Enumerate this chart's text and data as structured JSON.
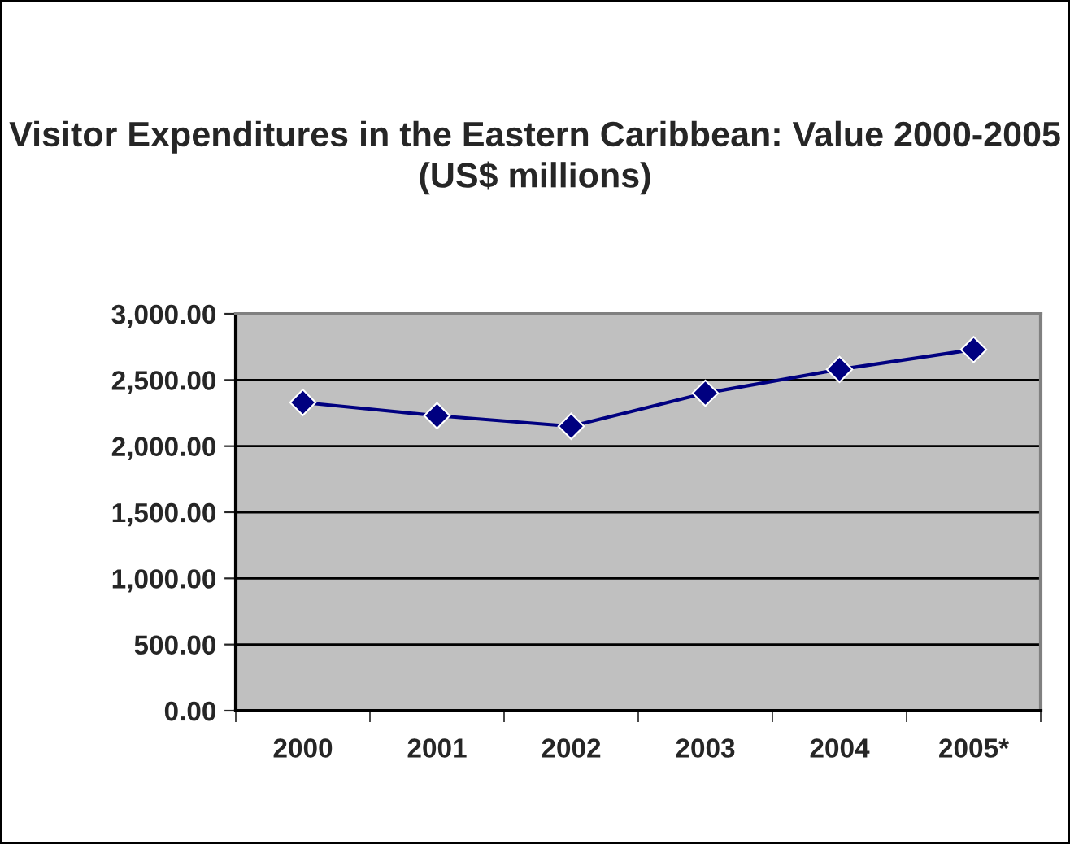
{
  "chart_data": {
    "type": "line",
    "title": "Visitor Expenditures in the Eastern Caribbean: Value 2000-2005\n(US$ millions)",
    "categories": [
      "2000",
      "2001",
      "2002",
      "2003",
      "2004",
      "2005*"
    ],
    "series": [
      {
        "color": "#000080",
        "values": [
          2330,
          2230,
          2150,
          2400,
          2580,
          2730
        ]
      }
    ],
    "ylim": [
      0,
      3000
    ],
    "yticks": [
      {
        "value": 0,
        "label": "0.00"
      },
      {
        "value": 500,
        "label": "500.00"
      },
      {
        "value": 1000,
        "label": "1,000.00"
      },
      {
        "value": 1500,
        "label": "1,500.00"
      },
      {
        "value": 2000,
        "label": "2,000.00"
      },
      {
        "value": 2500,
        "label": "2,500.00"
      },
      {
        "value": 3000,
        "label": "3,000.00"
      }
    ],
    "grid": "y",
    "marker": "diamond",
    "line_style": "solid",
    "legend": false
  }
}
